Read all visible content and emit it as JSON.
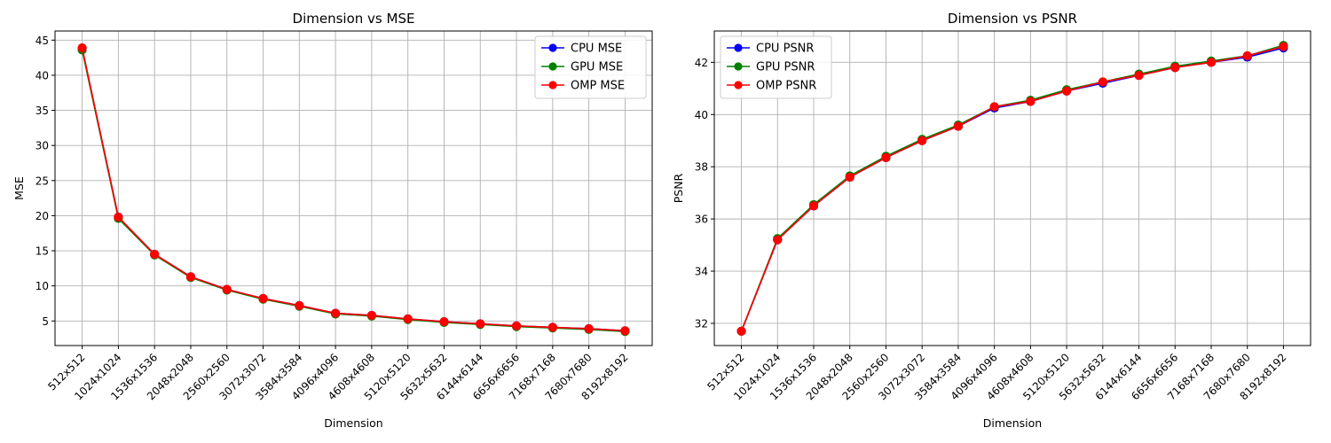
{
  "chart_data": [
    {
      "type": "line",
      "title": "Dimension vs MSE",
      "xlabel": "Dimension",
      "ylabel": "MSE",
      "categories": [
        "512x512",
        "1024x1024",
        "1536x1536",
        "2048x2048",
        "2560x2560",
        "3072x3072",
        "3584x3584",
        "4096x4096",
        "4608x4608",
        "5120x5120",
        "5632x5632",
        "6144x6144",
        "6656x6656",
        "7168x7168",
        "7680x7680",
        "8192x8192"
      ],
      "ylim": [
        1.5,
        46.3
      ],
      "yticks": [
        5,
        10,
        15,
        20,
        25,
        30,
        35,
        40,
        45
      ],
      "grid": true,
      "legend_position": "top-right",
      "series": [
        {
          "name": "CPU MSE",
          "color": "#0000ff",
          "values": [
            43.8,
            19.8,
            14.5,
            11.3,
            9.5,
            8.2,
            7.2,
            6.1,
            5.8,
            5.3,
            4.9,
            4.6,
            4.3,
            4.1,
            3.9,
            3.6
          ]
        },
        {
          "name": "GPU MSE",
          "color": "#008000",
          "values": [
            43.6,
            19.6,
            14.4,
            11.2,
            9.4,
            8.1,
            7.1,
            6.0,
            5.7,
            5.2,
            4.8,
            4.5,
            4.2,
            4.0,
            3.8,
            3.5
          ]
        },
        {
          "name": "OMP MSE",
          "color": "#ff0000",
          "values": [
            43.9,
            19.8,
            14.5,
            11.3,
            9.5,
            8.2,
            7.2,
            6.1,
            5.8,
            5.3,
            4.9,
            4.6,
            4.3,
            4.1,
            3.9,
            3.6
          ]
        }
      ]
    },
    {
      "type": "line",
      "title": "Dimension vs PSNR",
      "xlabel": "Dimension",
      "ylabel": "PSNR",
      "categories": [
        "512x512",
        "1024x1024",
        "1536x1536",
        "2048x2048",
        "2560x2560",
        "3072x3072",
        "3584x3584",
        "4096x4096",
        "4608x4608",
        "5120x5120",
        "5632x5632",
        "6144x6144",
        "6656x6656",
        "7168x7168",
        "7680x7680",
        "8192x8192"
      ],
      "ylim": [
        31.15,
        43.2
      ],
      "yticks": [
        32,
        34,
        36,
        38,
        40,
        42
      ],
      "grid": true,
      "legend_position": "top-left",
      "series": [
        {
          "name": "CPU PSNR",
          "color": "#0000ff",
          "values": [
            31.7,
            35.2,
            36.5,
            37.6,
            38.35,
            39.0,
            39.55,
            40.25,
            40.5,
            40.9,
            41.2,
            41.5,
            41.8,
            42.0,
            42.2,
            42.55
          ]
        },
        {
          "name": "GPU PSNR",
          "color": "#008000",
          "values": [
            31.7,
            35.25,
            36.55,
            37.65,
            38.4,
            39.05,
            39.6,
            40.3,
            40.55,
            40.95,
            41.25,
            41.55,
            41.85,
            42.05,
            42.25,
            42.65
          ]
        },
        {
          "name": "OMP PSNR",
          "color": "#ff0000",
          "values": [
            31.7,
            35.2,
            36.5,
            37.6,
            38.35,
            39.0,
            39.55,
            40.3,
            40.5,
            40.9,
            41.25,
            41.5,
            41.8,
            42.0,
            42.25,
            42.6
          ]
        }
      ]
    }
  ]
}
